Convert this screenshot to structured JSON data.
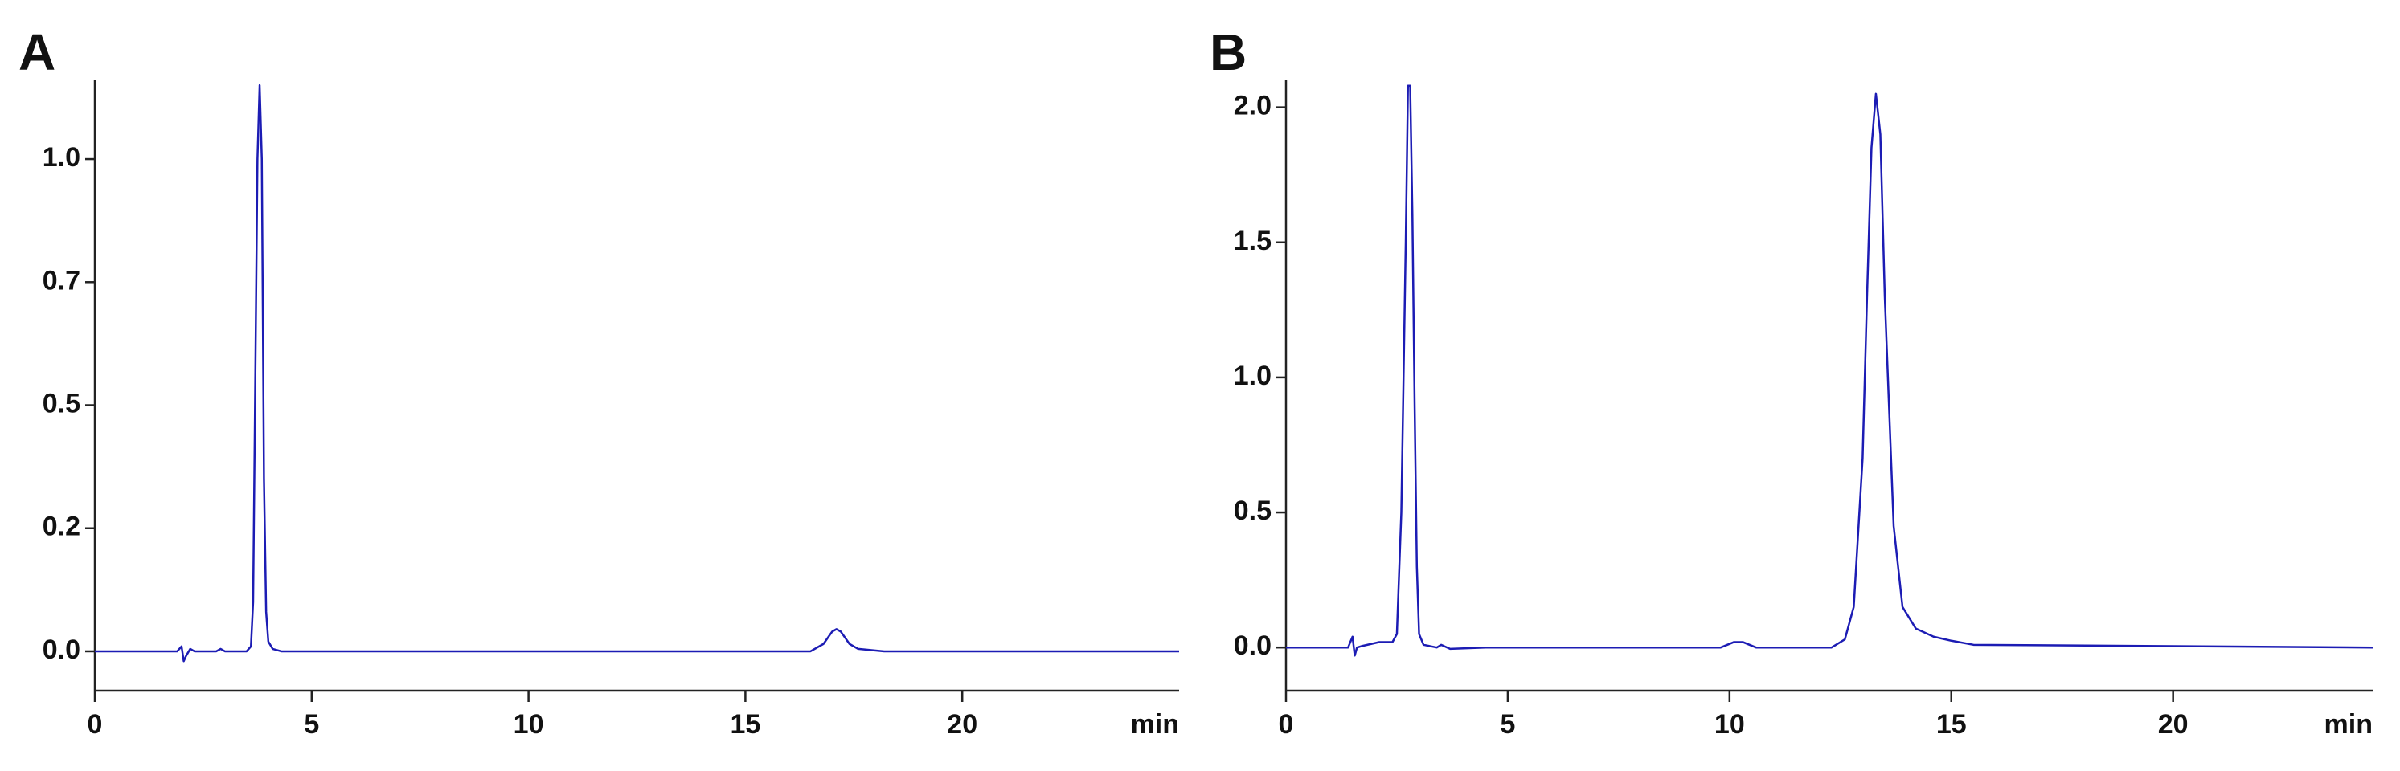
{
  "chart_data": [
    {
      "type": "line",
      "title": "A",
      "xlabel": "min",
      "x": [
        0,
        1.9,
        2.0,
        2.05,
        2.1,
        2.2,
        2.3,
        2.8,
        2.9,
        3.0,
        3.5,
        3.6,
        3.65,
        3.7,
        3.75,
        3.8,
        3.85,
        3.9,
        3.95,
        4.0,
        4.1,
        4.3,
        10,
        16.5,
        16.8,
        17.0,
        17.1,
        17.2,
        17.4,
        17.6,
        18.2,
        25
      ],
      "series": [
        {
          "color": "#1c1cb4",
          "values": [
            0,
            0,
            0.01,
            -0.02,
            -0.01,
            0.005,
            0,
            0,
            0.005,
            0,
            0,
            0.01,
            0.1,
            0.55,
            1.0,
            1.15,
            1.0,
            0.35,
            0.08,
            0.02,
            0.005,
            0,
            0,
            0,
            0.015,
            0.04,
            0.045,
            0.04,
            0.015,
            0.005,
            0,
            0
          ]
        }
      ],
      "xlim": [
        0,
        25
      ],
      "ylim": [
        -0.08,
        1.16
      ],
      "xticks": [
        0,
        5,
        10,
        15,
        20
      ],
      "yticks": [
        {
          "value": 0,
          "label": "0.0"
        },
        {
          "value": 0.25,
          "label": "0.2"
        },
        0.5,
        {
          "value": 0.75,
          "label": "0.7"
        },
        {
          "value": 1,
          "label": "1.0"
        }
      ]
    },
    {
      "type": "line",
      "title": "B",
      "xlabel": "min",
      "x": [
        0,
        1.4,
        1.5,
        1.55,
        1.6,
        1.7,
        2.1,
        2.2,
        2.4,
        2.5,
        2.6,
        2.7,
        2.75,
        2.8,
        2.85,
        2.9,
        2.95,
        3.0,
        3.1,
        3.4,
        3.5,
        3.7,
        4.5,
        9.8,
        10.1,
        10.3,
        10.6,
        12.3,
        12.6,
        12.8,
        13.0,
        13.1,
        13.2,
        13.3,
        13.4,
        13.5,
        13.7,
        13.9,
        14.2,
        14.6,
        15.0,
        15.5,
        24.5
      ],
      "series": [
        {
          "color": "#1c1cb4",
          "values": [
            0,
            0,
            0.04,
            -0.03,
            0,
            0.005,
            0.02,
            0.02,
            0.02,
            0.05,
            0.5,
            1.5,
            2.08,
            2.08,
            1.6,
            0.9,
            0.3,
            0.05,
            0.01,
            0,
            0.01,
            -0.005,
            0,
            0,
            0.02,
            0.02,
            0,
            0,
            0.03,
            0.15,
            0.7,
            1.3,
            1.85,
            2.05,
            1.9,
            1.3,
            0.45,
            0.15,
            0.07,
            0.04,
            0.025,
            0.01,
            0
          ]
        }
      ],
      "xlim": [
        0,
        24.5
      ],
      "ylim": [
        -0.16,
        2.1
      ],
      "xticks": [
        0,
        5,
        10,
        15,
        20
      ],
      "yticks": [
        {
          "value": 0,
          "label": "0.0"
        },
        0.5,
        {
          "value": 1,
          "label": "1.0"
        },
        1.5,
        {
          "value": 2,
          "label": "2.0"
        }
      ]
    }
  ]
}
